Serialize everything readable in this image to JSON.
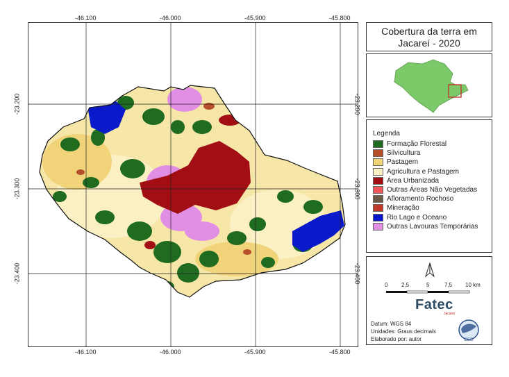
{
  "map": {
    "top_ticks": [
      "-46.100",
      "-46.000",
      "-45.900",
      "-45.800"
    ],
    "bottom_ticks": [
      "-46.100",
      "-46.000",
      "-45.900",
      "-45.800"
    ],
    "left_ticks": [
      "-23.200",
      "-23.300",
      "-23.400"
    ],
    "right_ticks": [
      "-23.200",
      "-23.300",
      "-23.400"
    ]
  },
  "title": {
    "line1": "Cobertura da terra em",
    "line2": "Jacareí - 2020"
  },
  "legend": {
    "title": "Legenda",
    "items": [
      {
        "label": "Formação Florestal",
        "color": "#1f6b1f"
      },
      {
        "label": "Silvicultura",
        "color": "#b5502a"
      },
      {
        "label": "Pastagem",
        "color": "#f1d37a"
      },
      {
        "label": "Agricultura e Pastagem",
        "color": "#fbf0c4"
      },
      {
        "label": "Área Urbanizada",
        "color": "#a10f14"
      },
      {
        "label": "Outras Áreas Não Vegetadas",
        "color": "#f0575b"
      },
      {
        "label": "Afloramento Rochoso",
        "color": "#6b5a45"
      },
      {
        "label": "Mineração",
        "color": "#c0392b"
      },
      {
        "label": "Rio Lago e Oceano",
        "color": "#0a19c9"
      },
      {
        "label": "Outras Lavouras Temporárias",
        "color": "#e18ee5"
      }
    ]
  },
  "scale": {
    "labels": [
      "0",
      "2,5",
      "5",
      "7,5",
      "10 km"
    ]
  },
  "logo": {
    "name": "Fatec",
    "subtitle": "Jacareí",
    "seal_text": "GEO"
  },
  "metadata": {
    "datum": "Datum: WGS 84",
    "units": "Unidades: Graus decimais",
    "author": "Elaborado por: autor"
  }
}
